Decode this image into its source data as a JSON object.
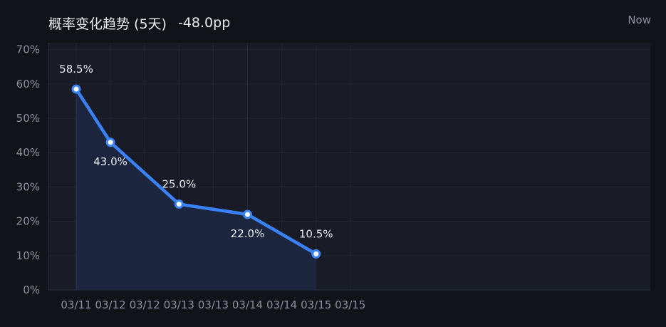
{
  "header": {
    "title": "概率变化趋势 (5天)",
    "delta": "-48.0pp",
    "now_label": "Now"
  },
  "colors": {
    "background": "#111319",
    "plot_background": "#191b26",
    "line": "#3b82f6",
    "area_fill": "#1c2740",
    "grid": "#222636",
    "text_muted": "#8b90a0",
    "text_primary": "#e9ebf0"
  },
  "chart_data": {
    "type": "line",
    "title": "概率变化趋势 (5天)",
    "xlabel": "",
    "ylabel": "",
    "x_tick_labels": [
      "03/11",
      "03/12",
      "03/12",
      "03/13",
      "03/13",
      "03/14",
      "03/14",
      "03/15",
      "03/15"
    ],
    "y_tick_labels": [
      "0%",
      "10%",
      "20%",
      "30%",
      "40%",
      "50%",
      "60%",
      "70%"
    ],
    "ylim": [
      0,
      72
    ],
    "y_ticks": [
      0,
      10,
      20,
      30,
      40,
      50,
      60,
      70
    ],
    "grid": true,
    "area_fill": true,
    "series": [
      {
        "points": [
          {
            "x": "03/11",
            "y": 58.5,
            "label": "58.5%",
            "label_position": "above"
          },
          {
            "x": "03/12",
            "y": 43.0,
            "label": "43.0%",
            "label_position": "below"
          },
          {
            "x": "03/13",
            "y": 25.0,
            "label": "25.0%",
            "label_position": "above"
          },
          {
            "x": "03/14",
            "y": 22.0,
            "label": "22.0%",
            "label_position": "below"
          },
          {
            "x": "03/15",
            "y": 10.5,
            "label": "10.5%",
            "label_position": "above"
          }
        ]
      }
    ]
  }
}
